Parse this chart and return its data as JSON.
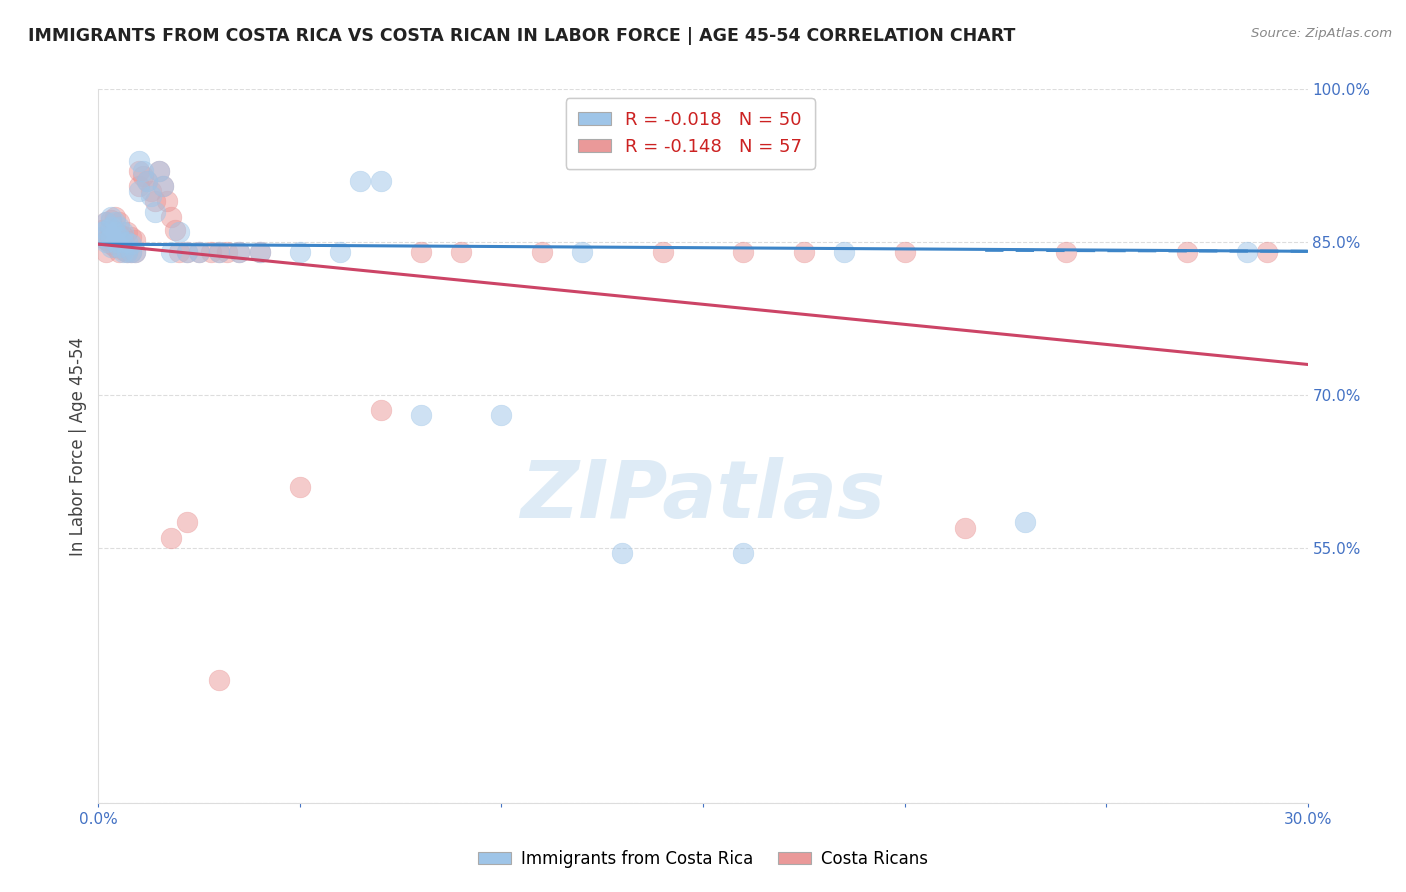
{
  "title": "IMMIGRANTS FROM COSTA RICA VS COSTA RICAN IN LABOR FORCE | AGE 45-54 CORRELATION CHART",
  "source": "Source: ZipAtlas.com",
  "ylabel": "In Labor Force | Age 45-54",
  "xlim": [
    0.0,
    0.3
  ],
  "ylim": [
    0.3,
    1.0
  ],
  "xticks": [
    0.0,
    0.05,
    0.1,
    0.15,
    0.2,
    0.25,
    0.3
  ],
  "xticklabels": [
    "0.0%",
    "",
    "",
    "",
    "",
    "",
    "30.0%"
  ],
  "yticks_right": [
    0.55,
    0.7,
    0.85,
    1.0
  ],
  "ytick_labels_right": [
    "55.0%",
    "70.0%",
    "85.0%",
    "100.0%"
  ],
  "blue_color": "#9fc5e8",
  "pink_color": "#ea9999",
  "blue_line_color": "#3d85c8",
  "pink_line_color": "#cc4466",
  "blue_R": "-0.018",
  "blue_N": "50",
  "pink_R": "-0.148",
  "pink_N": "57",
  "watermark": "ZIPatlas",
  "watermark_color": "#c9dff0",
  "blue_scatter_x": [
    0.001,
    0.001,
    0.002,
    0.002,
    0.002,
    0.003,
    0.003,
    0.003,
    0.003,
    0.004,
    0.004,
    0.004,
    0.005,
    0.005,
    0.005,
    0.006,
    0.006,
    0.006,
    0.007,
    0.007,
    0.008,
    0.008,
    0.009,
    0.01,
    0.01,
    0.011,
    0.012,
    0.013,
    0.014,
    0.015,
    0.016,
    0.018,
    0.02,
    0.022,
    0.025,
    0.03,
    0.035,
    0.04,
    0.05,
    0.06,
    0.065,
    0.07,
    0.08,
    0.1,
    0.12,
    0.13,
    0.16,
    0.185,
    0.23,
    0.285
  ],
  "blue_scatter_y": [
    0.855,
    0.86,
    0.85,
    0.862,
    0.87,
    0.845,
    0.855,
    0.865,
    0.875,
    0.85,
    0.86,
    0.87,
    0.845,
    0.855,
    0.865,
    0.84,
    0.85,
    0.86,
    0.84,
    0.85,
    0.84,
    0.848,
    0.84,
    0.9,
    0.93,
    0.92,
    0.91,
    0.895,
    0.88,
    0.92,
    0.905,
    0.84,
    0.86,
    0.84,
    0.84,
    0.84,
    0.84,
    0.84,
    0.84,
    0.84,
    0.91,
    0.91,
    0.68,
    0.68,
    0.84,
    0.545,
    0.545,
    0.84,
    0.575,
    0.84
  ],
  "pink_scatter_x": [
    0.001,
    0.001,
    0.002,
    0.002,
    0.002,
    0.003,
    0.003,
    0.003,
    0.004,
    0.004,
    0.004,
    0.005,
    0.005,
    0.005,
    0.006,
    0.006,
    0.007,
    0.007,
    0.008,
    0.008,
    0.009,
    0.009,
    0.01,
    0.01,
    0.011,
    0.012,
    0.013,
    0.014,
    0.015,
    0.016,
    0.017,
    0.018,
    0.019,
    0.02,
    0.022,
    0.025,
    0.028,
    0.03,
    0.032,
    0.035,
    0.04,
    0.05,
    0.07,
    0.08,
    0.09,
    0.11,
    0.14,
    0.16,
    0.175,
    0.2,
    0.215,
    0.24,
    0.27,
    0.29,
    0.018,
    0.022,
    0.03
  ],
  "pink_scatter_y": [
    0.855,
    0.862,
    0.84,
    0.852,
    0.87,
    0.848,
    0.858,
    0.872,
    0.845,
    0.86,
    0.875,
    0.84,
    0.858,
    0.87,
    0.842,
    0.856,
    0.84,
    0.86,
    0.84,
    0.855,
    0.84,
    0.852,
    0.905,
    0.92,
    0.915,
    0.91,
    0.9,
    0.89,
    0.92,
    0.905,
    0.89,
    0.875,
    0.862,
    0.84,
    0.84,
    0.84,
    0.84,
    0.84,
    0.84,
    0.84,
    0.84,
    0.61,
    0.685,
    0.84,
    0.84,
    0.84,
    0.84,
    0.84,
    0.84,
    0.84,
    0.57,
    0.84,
    0.84,
    0.84,
    0.56,
    0.575,
    0.42
  ],
  "blue_trend_x": [
    0.0,
    0.3
  ],
  "blue_trend_y": [
    0.848,
    0.841
  ],
  "pink_trend_x": [
    0.0,
    0.3
  ],
  "pink_trend_y": [
    0.848,
    0.73
  ],
  "grid_color": "#dddddd",
  "title_color": "#222222",
  "axis_label_color": "#444444",
  "tick_color": "#4472c4",
  "background_color": "#ffffff"
}
